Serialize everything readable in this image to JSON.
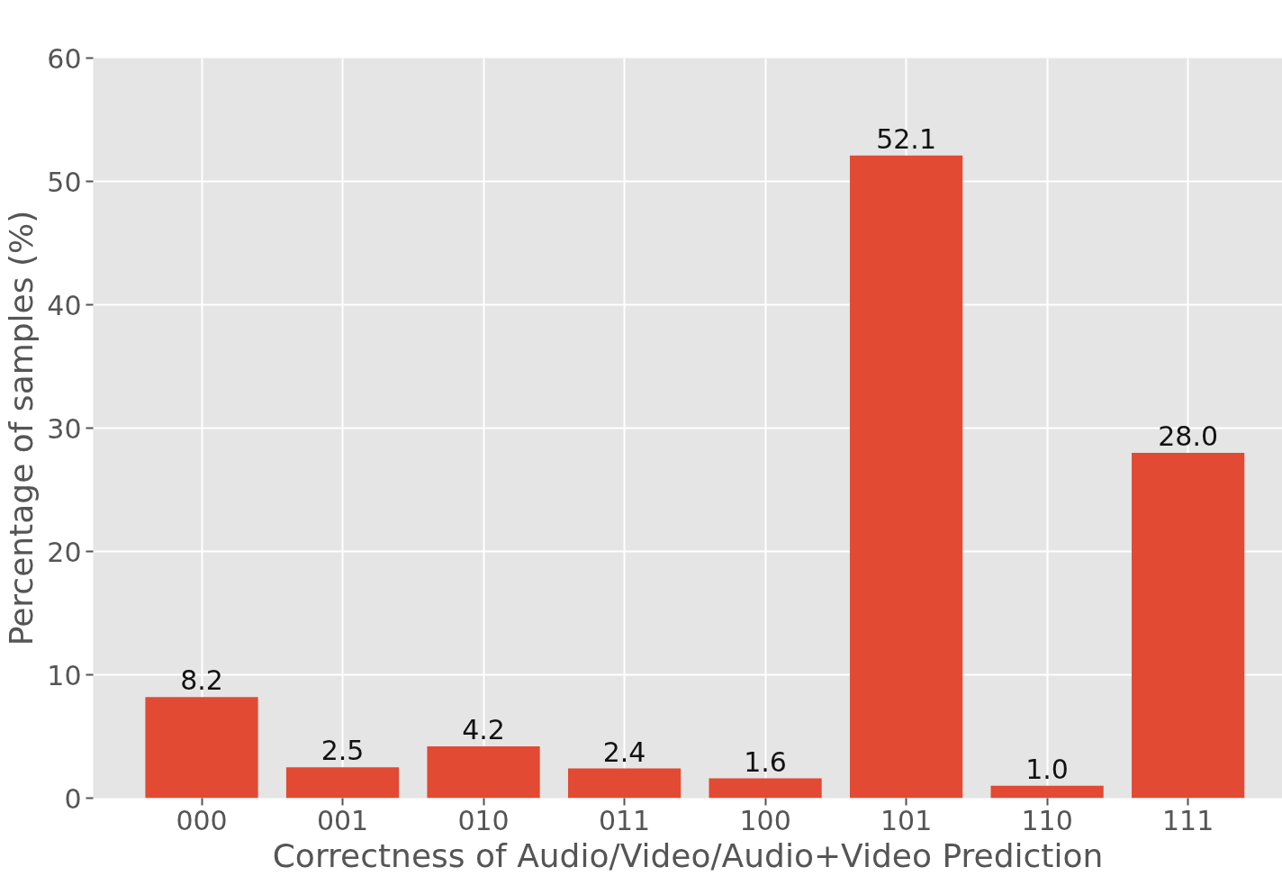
{
  "chart_data": {
    "type": "bar",
    "xlabel": "Correctness of Audio/Video/Audio+Video Prediction",
    "ylabel": "Percentage of samples (%)",
    "categories": [
      "000",
      "001",
      "010",
      "011",
      "100",
      "101",
      "110",
      "111"
    ],
    "values": [
      8.2,
      2.5,
      4.2,
      2.4,
      1.6,
      52.1,
      1.0,
      28.0
    ],
    "value_labels": [
      "8.2",
      "2.5",
      "4.2",
      "2.4",
      "1.6",
      "52.1",
      "1.0",
      "28.0"
    ],
    "color": "#e24a33",
    "ylim": [
      0,
      60
    ],
    "yticks": [
      0,
      10,
      20,
      30,
      40,
      50,
      60
    ],
    "grid": true
  }
}
